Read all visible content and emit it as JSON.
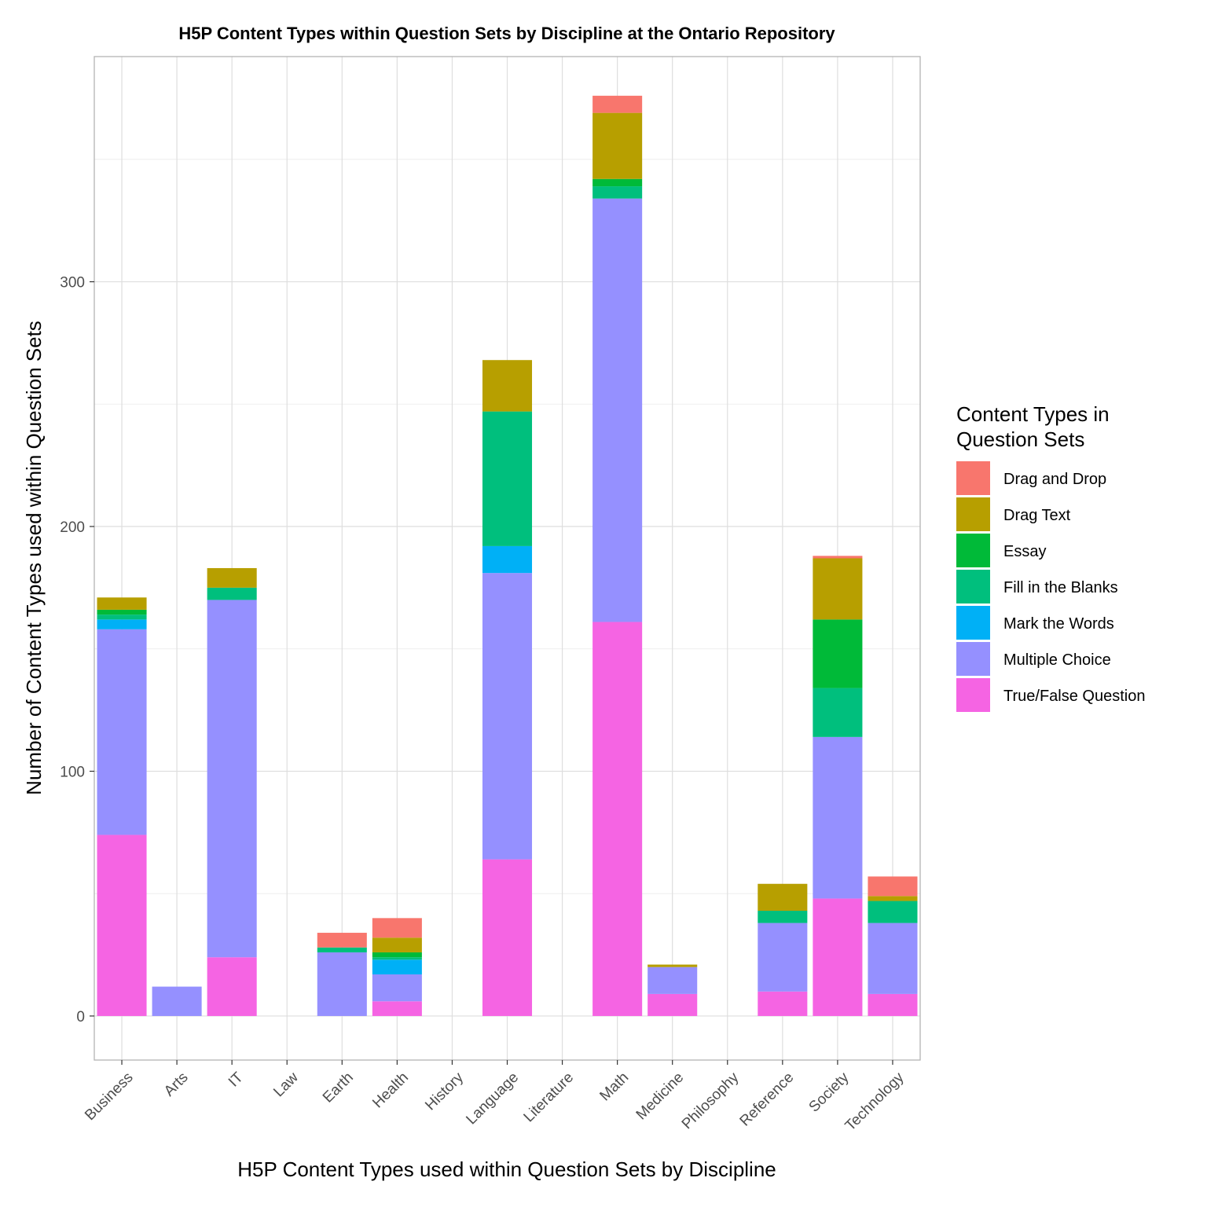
{
  "chart_data": {
    "type": "bar",
    "stacked": true,
    "title": "H5P Content Types within Question Sets by Discipline at the Ontario Repository",
    "xlabel": "H5P Content Types used within Question Sets by Discipline",
    "ylabel": "Number of Content Types used within Question Sets",
    "ylim": [
      -18,
      392
    ],
    "yticks": [
      0,
      100,
      200,
      300
    ],
    "grid": true,
    "legend": {
      "title_lines": [
        "Content Types in",
        "Question Sets"
      ],
      "placement": "right"
    },
    "categories": [
      "Business",
      "Arts",
      "IT",
      "Law",
      "Earth",
      "Health",
      "History",
      "Language",
      "Literature",
      "Math",
      "Medicine",
      "Philosophy",
      "Reference",
      "Society",
      "Technology"
    ],
    "series": [
      {
        "name": "Drag and Drop",
        "color": "#F8766D",
        "values": [
          0,
          0,
          0,
          0,
          6,
          8,
          0,
          0,
          0,
          7,
          0,
          0,
          0,
          1,
          8
        ]
      },
      {
        "name": "Drag Text",
        "color": "#B79F00",
        "values": [
          5,
          0,
          8,
          0,
          0,
          6,
          0,
          21,
          0,
          27,
          1,
          0,
          11,
          25,
          2
        ]
      },
      {
        "name": "Essay",
        "color": "#00BA38",
        "values": [
          2,
          0,
          0,
          0,
          0,
          2,
          0,
          0,
          0,
          3,
          0,
          0,
          0,
          28,
          0
        ]
      },
      {
        "name": "Fill in the Blanks",
        "color": "#00BF7D",
        "values": [
          2,
          0,
          5,
          0,
          2,
          1,
          0,
          55,
          0,
          5,
          0,
          0,
          5,
          20,
          9
        ]
      },
      {
        "name": "Mark the Words",
        "color": "#00B0F6",
        "values": [
          4,
          0,
          0,
          0,
          0,
          6,
          0,
          11,
          0,
          0,
          0,
          0,
          0,
          0,
          0
        ]
      },
      {
        "name": "Multiple Choice",
        "color": "#9590FF",
        "values": [
          84,
          12,
          146,
          0,
          26,
          11,
          0,
          117,
          0,
          173,
          11,
          0,
          28,
          66,
          29
        ]
      },
      {
        "name": "True/False Question",
        "color": "#F564E3",
        "values": [
          74,
          0,
          24,
          0,
          0,
          6,
          0,
          64,
          0,
          161,
          9,
          0,
          10,
          48,
          9
        ]
      }
    ]
  }
}
